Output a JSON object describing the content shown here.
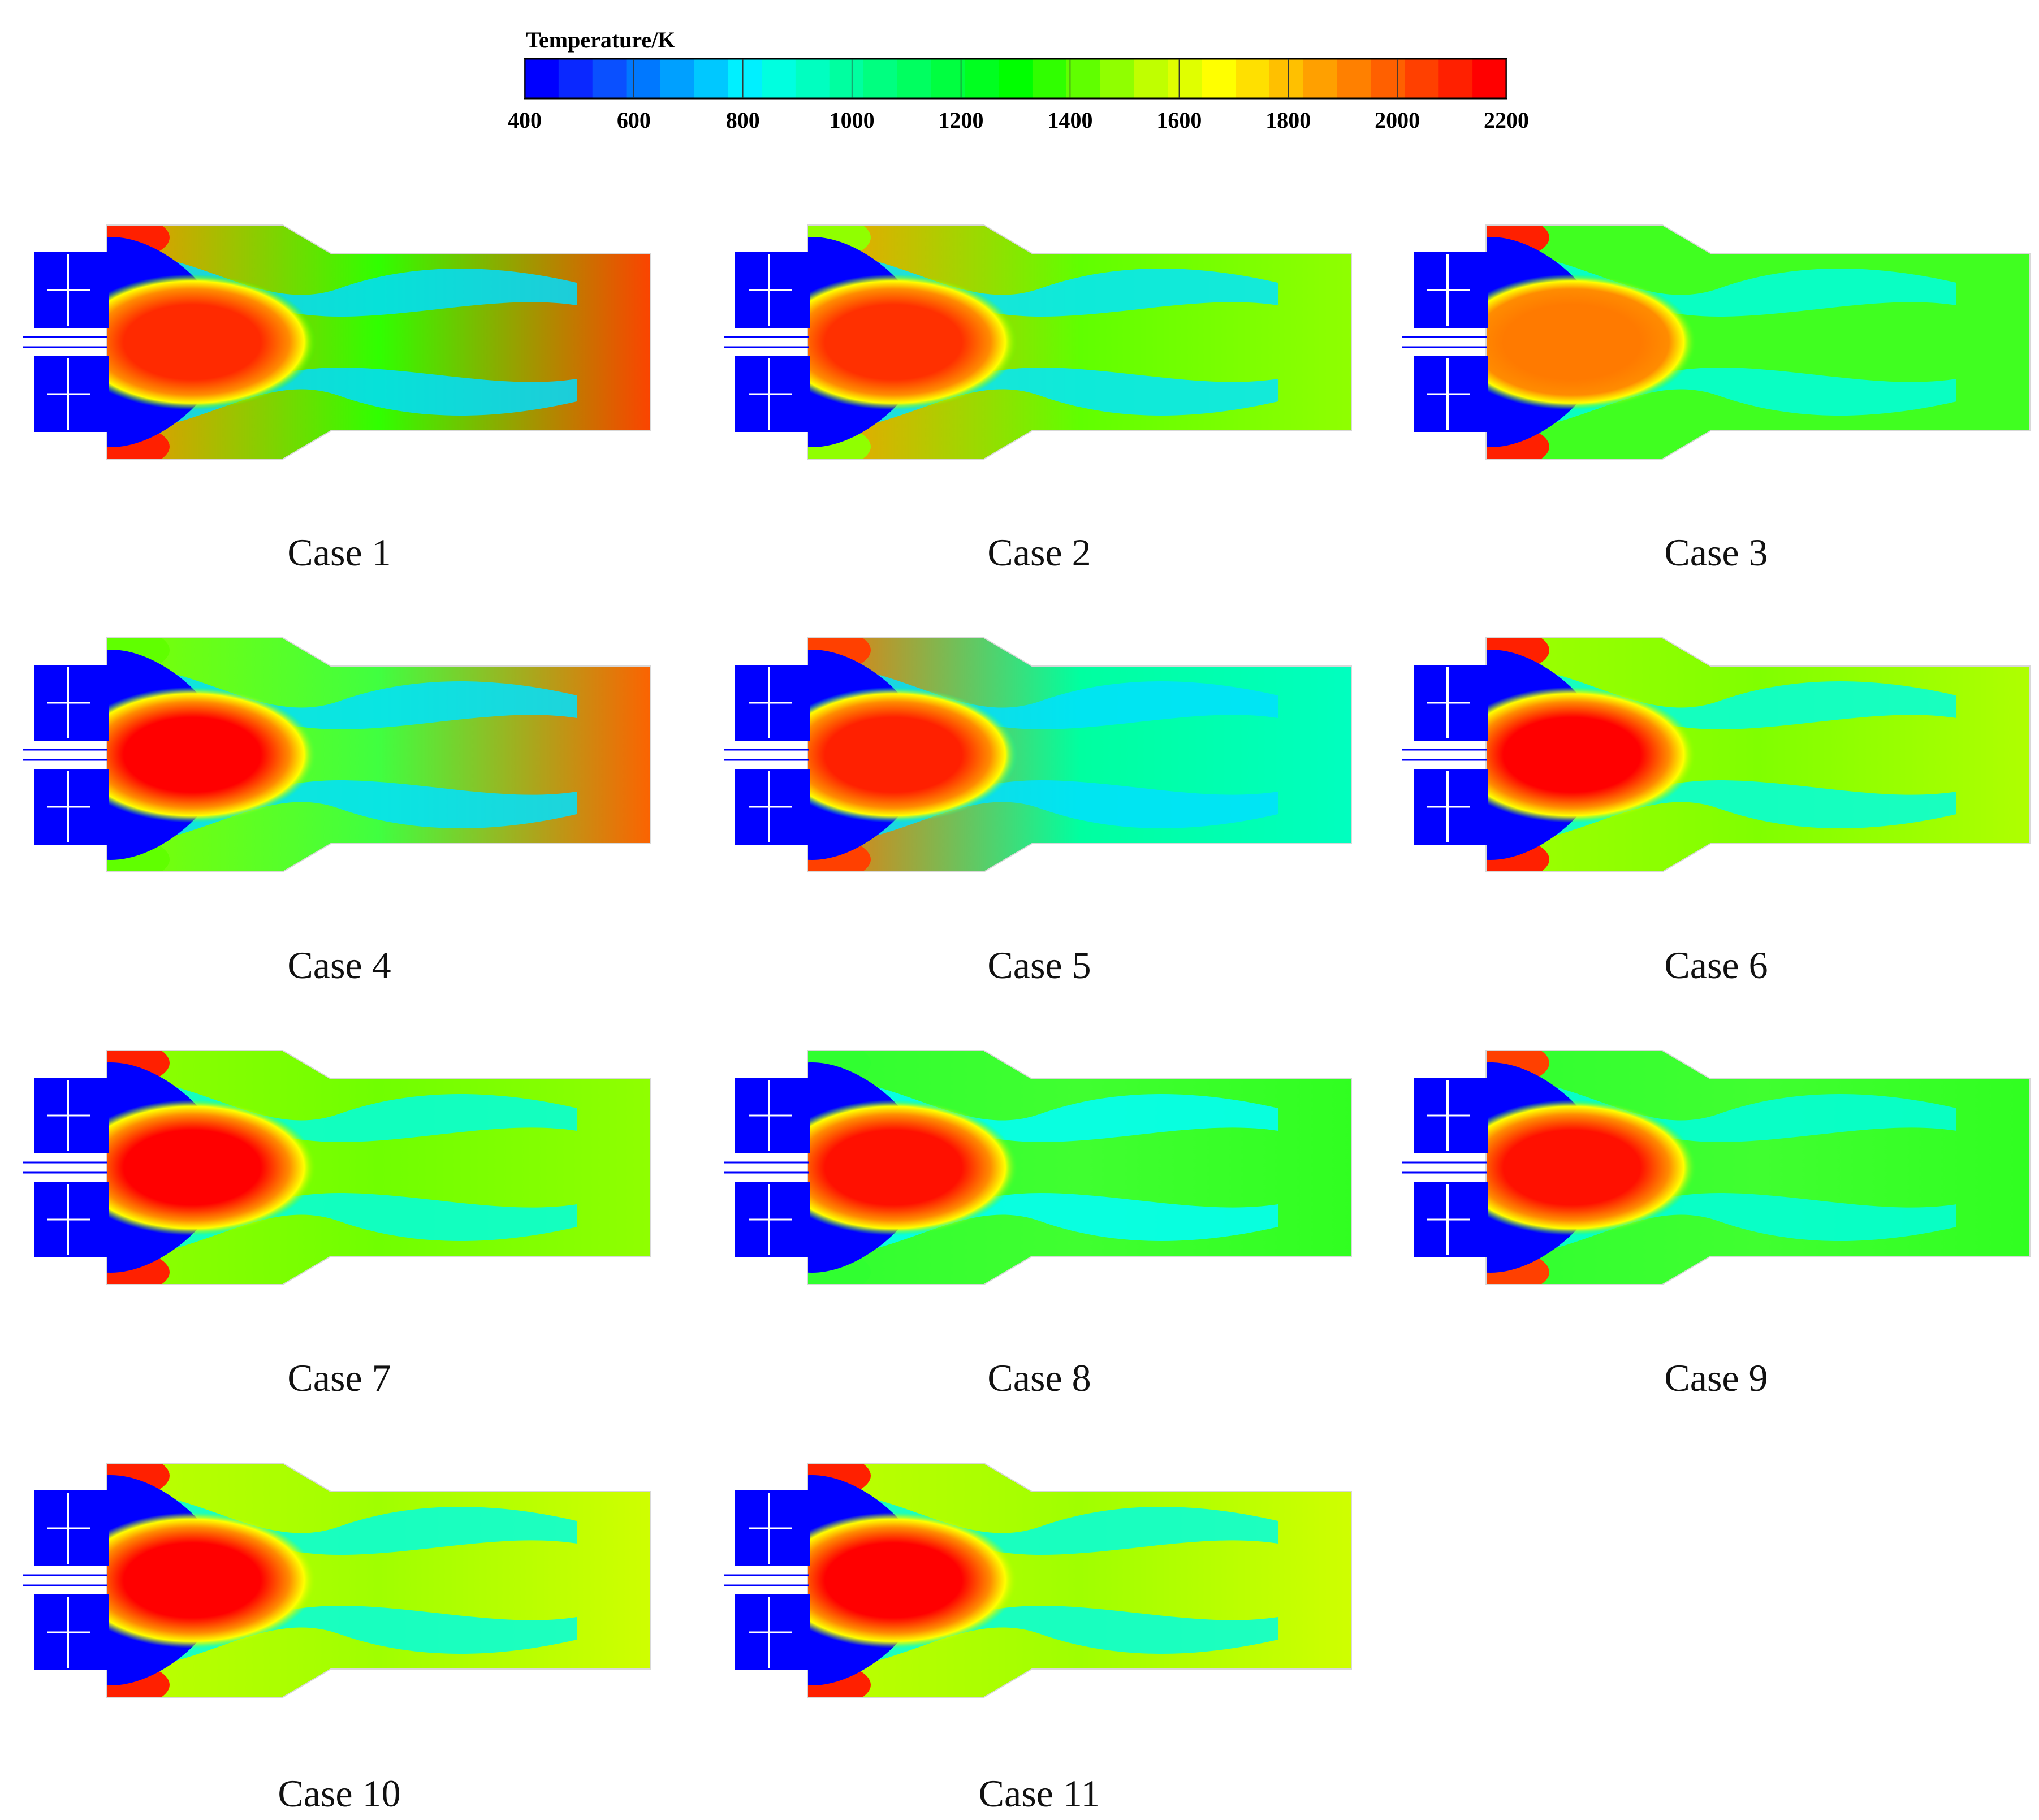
{
  "colorbar": {
    "title": "Temperature/K",
    "min": 400,
    "max": 2200,
    "ticks": [
      "400",
      "600",
      "800",
      "1000",
      "1200",
      "1400",
      "1600",
      "1800",
      "2000",
      "2200"
    ],
    "colors": [
      "#0000ff",
      "#0a28ff",
      "#0a50ff",
      "#0078ff",
      "#00a0ff",
      "#00c8ff",
      "#00f0ff",
      "#00ffe0",
      "#00ffc0",
      "#00ffa0",
      "#00ff80",
      "#00ff60",
      "#00ff40",
      "#00ff20",
      "#00ff00",
      "#30ff00",
      "#60ff00",
      "#90ff00",
      "#c0ff00",
      "#e0ff00",
      "#ffff00",
      "#ffe000",
      "#ffc000",
      "#ffa000",
      "#ff8000",
      "#ff6000",
      "#ff4000",
      "#ff2000",
      "#ff0000"
    ]
  },
  "palette": {
    "cold": "#0000ff",
    "cool": "#00dcff",
    "mid": "#22ff22",
    "warm": "#ffff00",
    "orange": "#ff8c00",
    "hot": "#ff1a00"
  },
  "cases": [
    {
      "label": "Case 1",
      "bg": "#ff8c00",
      "outlet": "#ff4000",
      "core": "#ff2a00",
      "corner": "#ff2000",
      "shear": "#00dcff",
      "jet": "#0000ff",
      "downstream": "#30ff00"
    },
    {
      "label": "Case 2",
      "bg": "#ff9a00",
      "outlet": "#90ff00",
      "core": "#ff3000",
      "corner": "#90ff00",
      "shear": "#00e6ff",
      "jet": "#0000ff",
      "downstream": "#60ff00"
    },
    {
      "label": "Case 3",
      "bg": "#40ff20",
      "outlet": "#40ff20",
      "core": "#ff7a00",
      "corner": "#ff2000",
      "shear": "#00ffe0",
      "jet": "#0000ff",
      "downstream": "#40ff20"
    },
    {
      "label": "Case 4",
      "bg": "#80ff00",
      "outlet": "#ff6000",
      "core": "#ff0000",
      "corner": "#60ff00",
      "shear": "#00e0ff",
      "jet": "#0000ff",
      "downstream": "#40ff40"
    },
    {
      "label": "Case 5",
      "bg": "#ff7000",
      "outlet": "#00ffc0",
      "core": "#ff2000",
      "corner": "#ff4000",
      "shear": "#00e0ff",
      "jet": "#0000ff",
      "downstream": "#00ffa0"
    },
    {
      "label": "Case 6",
      "bg": "#a0ff00",
      "outlet": "#b0ff00",
      "core": "#ff0000",
      "corner": "#ff2000",
      "shear": "#00ffe0",
      "jet": "#0000ff",
      "downstream": "#80ff00"
    },
    {
      "label": "Case 7",
      "bg": "#90ff00",
      "outlet": "#90ff00",
      "core": "#ff0000",
      "corner": "#ff2000",
      "shear": "#00ffe0",
      "jet": "#0000ff",
      "downstream": "#70ff00"
    },
    {
      "label": "Case 8",
      "bg": "#30ff30",
      "outlet": "#30ff20",
      "core": "#ff1000",
      "corner": "#30ff30",
      "shear": "#00ffff",
      "jet": "#0000ff",
      "downstream": "#40ff30"
    },
    {
      "label": "Case 9",
      "bg": "#30ff30",
      "outlet": "#30ff20",
      "core": "#ff1000",
      "corner": "#ff4000",
      "shear": "#00ffe0",
      "jet": "#0000ff",
      "downstream": "#40ff30"
    },
    {
      "label": "Case 10",
      "bg": "#c0ff00",
      "outlet": "#d0ff00",
      "core": "#ff0000",
      "corner": "#ff2000",
      "shear": "#00ffe0",
      "jet": "#0000ff",
      "downstream": "#a0ff00"
    },
    {
      "label": "Case 11",
      "bg": "#c0ff00",
      "outlet": "#d0ff00",
      "core": "#ff0000",
      "corner": "#ff2000",
      "shear": "#00ffe0",
      "jet": "#0000ff",
      "downstream": "#a0ff00"
    }
  ]
}
